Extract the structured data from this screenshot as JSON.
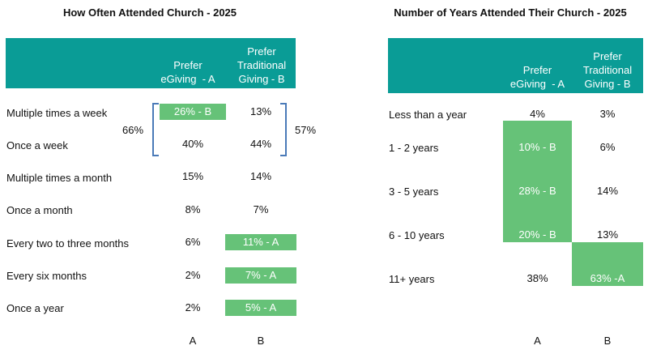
{
  "chart_data": [
    {
      "type": "table",
      "title": "How Often Attended Church - 2025",
      "columns": [
        "Prefer eGiving  - A",
        "Prefer Traditional Giving - B"
      ],
      "rows": [
        {
          "label": "Multiple times a week",
          "a": "26% - B",
          "b": "13%",
          "highlight": "a"
        },
        {
          "label": "Once a week",
          "a": "40%",
          "b": "44%",
          "highlight": ""
        },
        {
          "label": "Multiple times a month",
          "a": "15%",
          "b": "14%",
          "highlight": ""
        },
        {
          "label": "Once a month",
          "a": "8%",
          "b": "7%",
          "highlight": ""
        },
        {
          "label": "Every two to three months",
          "a": "6%",
          "b": "11% - A",
          "highlight": "b"
        },
        {
          "label": "Every six months",
          "a": "2%",
          "b": "7% - A",
          "highlight": "b"
        },
        {
          "label": "Once a year",
          "a": "2%",
          "b": "5% - A",
          "highlight": "b"
        }
      ],
      "groups": [
        {
          "label_a": "66%",
          "label_b": "57%"
        }
      ],
      "footer": [
        "A",
        "B"
      ]
    },
    {
      "type": "table",
      "title": "Number of Years Attended Their Church - 2025",
      "columns": [
        "Prefer eGiving  - A",
        "Prefer Traditional Giving - B"
      ],
      "rows": [
        {
          "label": "Less than a year",
          "a": "4%",
          "b": "3%"
        },
        {
          "label": "1 - 2 years",
          "a": "10% - B",
          "b": "6%"
        },
        {
          "label": "3 - 5 years",
          "a": "28% - B",
          "b": "14%"
        },
        {
          "label": "6 - 10 years",
          "a": "20% - B",
          "b": "13%"
        },
        {
          "label": "11+ years",
          "a": "38%",
          "b": "63% -A"
        }
      ],
      "footer": [
        "A",
        "B"
      ]
    }
  ],
  "colors": {
    "header": "#0a9c96",
    "highlight": "#66c278",
    "bracket": "#4a7ab8"
  }
}
